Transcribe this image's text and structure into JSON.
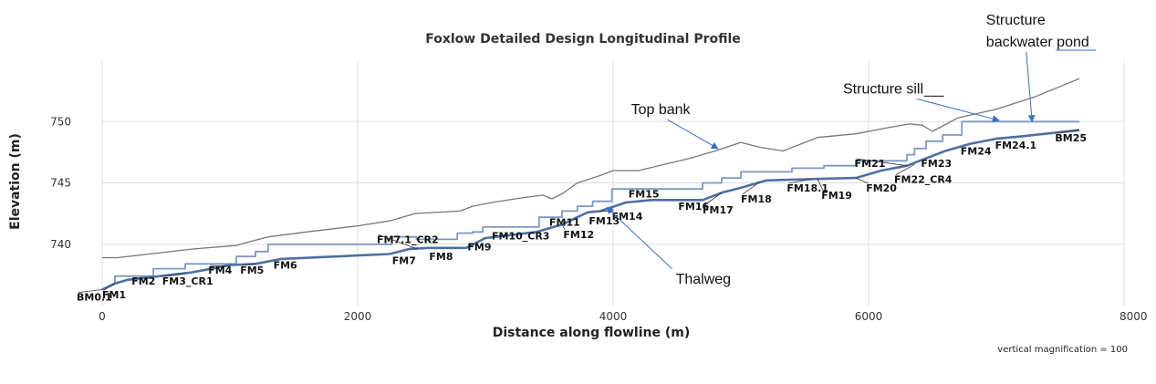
{
  "chart_data": {
    "type": "line",
    "title": "Foxlow Detailed Design Longitudinal Profile",
    "xlabel": "Distance along flowline (m)",
    "ylabel": "Elevation (m)",
    "xlim": [
      0,
      8000
    ],
    "ylim": [
      735,
      755
    ],
    "x_ticks": [
      0,
      2000,
      4000,
      6000,
      8000
    ],
    "x_tick_labels": [
      "0",
      "2000",
      "4000",
      "6000",
      "8000"
    ],
    "y_ticks": [
      740,
      745,
      750
    ],
    "y_tick_labels": [
      "740",
      "745",
      "750"
    ],
    "grid": true,
    "legend": "none",
    "colors": {
      "top_bank": "#777777",
      "thalweg": "#4e6fa3",
      "design": "#7f97c0",
      "grid": "#dddddd",
      "callout_arrow": "#3a6fc4"
    },
    "series": [
      {
        "key": "top_bank",
        "x": [
          0,
          120,
          700,
          1050,
          1150,
          1300,
          1600,
          2000,
          2250,
          2450,
          2800,
          2900,
          3050,
          3300,
          3450,
          3520,
          3600,
          3720,
          3900,
          4000,
          4200,
          4400,
          4600,
          4800,
          5000,
          5150,
          5330,
          5600,
          5900,
          6150,
          6320,
          6420,
          6500,
          6700,
          7000,
          7300,
          7650
        ],
        "y": [
          738.9,
          738.9,
          739.6,
          739.9,
          740.2,
          740.6,
          741.0,
          741.5,
          741.9,
          742.5,
          742.7,
          743.1,
          743.4,
          743.8,
          744.0,
          743.7,
          744.1,
          745.0,
          745.6,
          746.0,
          746.0,
          746.5,
          747.0,
          747.6,
          748.3,
          747.9,
          747.6,
          748.7,
          749.0,
          749.5,
          749.8,
          749.7,
          749.2,
          750.3,
          751.0,
          752.0,
          753.5
        ]
      },
      {
        "key": "thalweg",
        "x": [
          0,
          100,
          200,
          700,
          1000,
          1200,
          1400,
          2250,
          2400,
          2550,
          2850,
          3000,
          3400,
          3600,
          3800,
          3900,
          4100,
          4300,
          4700,
          4850,
          5000,
          5200,
          5500,
          5900,
          6100,
          6300,
          6600,
          6800,
          7000,
          7200,
          7650
        ],
        "y": [
          736.3,
          736.8,
          737.1,
          737.7,
          738.3,
          738.4,
          738.8,
          739.2,
          739.6,
          739.7,
          739.7,
          740.5,
          741.0,
          741.6,
          742.6,
          742.7,
          743.4,
          743.6,
          743.6,
          744.2,
          744.6,
          745.2,
          745.3,
          745.4,
          746.0,
          746.4,
          747.6,
          748.2,
          748.6,
          748.8,
          749.3
        ]
      },
      {
        "key": "design",
        "x": [
          0,
          100,
          100,
          400,
          400,
          650,
          650,
          1050,
          1050,
          1200,
          1200,
          1300,
          1300,
          2270,
          2270,
          2460,
          2460,
          2780,
          2780,
          2900,
          2900,
          2980,
          2980,
          3420,
          3420,
          3600,
          3600,
          3720,
          3720,
          3840,
          3840,
          3990,
          3990,
          4450,
          4450,
          4700,
          4700,
          4850,
          4850,
          5000,
          5000,
          5400,
          5400,
          5650,
          5650,
          5900,
          5900,
          6300,
          6300,
          6360,
          6360,
          6450,
          6450,
          6580,
          6580,
          6730,
          6730,
          7000,
          7000,
          7650
        ],
        "y": [
          736.3,
          736.8,
          737.4,
          737.4,
          738.0,
          738.0,
          738.4,
          738.4,
          739.0,
          739.0,
          739.4,
          739.4,
          740.0,
          740.0,
          740.6,
          740.6,
          740.4,
          740.4,
          740.9,
          740.9,
          741.0,
          741.0,
          741.4,
          741.4,
          742.2,
          742.2,
          742.7,
          742.7,
          743.1,
          743.1,
          743.5,
          743.5,
          744.5,
          744.5,
          744.5,
          744.5,
          745.0,
          745.0,
          745.4,
          745.4,
          745.9,
          745.9,
          746.2,
          746.2,
          746.4,
          746.4,
          746.8,
          746.8,
          747.3,
          747.3,
          747.8,
          747.8,
          748.4,
          748.4,
          748.9,
          748.9,
          750.0,
          750.0,
          750.0,
          750.0
        ]
      }
    ],
    "stations": [
      {
        "label": "BM0.1",
        "x": 0,
        "y": 736.3,
        "tx": -200,
        "ty": 735.4
      },
      {
        "label": "FM1",
        "x": 100,
        "y": 736.8,
        "tx": 0,
        "ty": 735.6
      },
      {
        "label": "FM2",
        "x": 200,
        "y": 737.1,
        "tx": 230,
        "ty": 736.7
      },
      {
        "label": "FM3_CR1",
        "x": 650,
        "y": 737.6,
        "tx": 470,
        "ty": 736.7
      },
      {
        "label": "FM4",
        "x": 1000,
        "y": 738.2,
        "tx": 830,
        "ty": 737.6
      },
      {
        "label": "FM5",
        "x": 1200,
        "y": 738.4,
        "tx": 1080,
        "ty": 737.6
      },
      {
        "label": "FM6",
        "x": 1400,
        "y": 738.8,
        "tx": 1340,
        "ty": 738.0
      },
      {
        "label": "FM7.1_CR2",
        "x": 2470,
        "y": 739.6,
        "tx": 2150,
        "ty": 740.1
      },
      {
        "label": "FM7",
        "x": 2250,
        "y": 739.2,
        "tx": 2270,
        "ty": 738.4
      },
      {
        "label": "FM8",
        "x": 2550,
        "y": 739.7,
        "tx": 2560,
        "ty": 738.7
      },
      {
        "label": "FM9",
        "x": 2870,
        "y": 739.8,
        "tx": 2860,
        "ty": 739.5
      },
      {
        "label": "FM10_CR3",
        "x": 3000,
        "y": 740.5,
        "tx": 3050,
        "ty": 740.4
      },
      {
        "label": "FM11",
        "x": 3450,
        "y": 741.1,
        "tx": 3500,
        "ty": 741.5
      },
      {
        "label": "FM12",
        "x": 3600,
        "y": 741.6,
        "tx": 3610,
        "ty": 740.5
      },
      {
        "label": "FM13",
        "x": 3750,
        "y": 742.3,
        "tx": 3810,
        "ty": 741.6
      },
      {
        "label": "FM14",
        "x": 3900,
        "y": 742.7,
        "tx": 3990,
        "ty": 742.0
      },
      {
        "label": "FM15",
        "x": 4100,
        "y": 743.4,
        "tx": 4120,
        "ty": 743.8
      },
      {
        "label": "FM16",
        "x": 4500,
        "y": 743.6,
        "tx": 4510,
        "ty": 742.8
      },
      {
        "label": "FM17",
        "x": 4850,
        "y": 744.2,
        "tx": 4700,
        "ty": 742.5
      },
      {
        "label": "FM18",
        "x": 5150,
        "y": 745.1,
        "tx": 5000,
        "ty": 743.4
      },
      {
        "label": "FM18.1",
        "x": 5550,
        "y": 745.3,
        "tx": 5360,
        "ty": 744.3
      },
      {
        "label": "FM19",
        "x": 5600,
        "y": 745.3,
        "tx": 5630,
        "ty": 743.7
      },
      {
        "label": "FM20",
        "x": 5900,
        "y": 745.4,
        "tx": 5980,
        "ty": 744.3
      },
      {
        "label": "FM21",
        "x": 6300,
        "y": 746.4,
        "tx": 5890,
        "ty": 746.3
      },
      {
        "label": "FM22_CR4",
        "x": 6360,
        "y": 746.5,
        "tx": 6200,
        "ty": 745.0
      },
      {
        "label": "FM23",
        "x": 6450,
        "y": 747.0,
        "tx": 6410,
        "ty": 746.3
      },
      {
        "label": "FM24",
        "x": 6700,
        "y": 747.9,
        "tx": 6720,
        "ty": 747.3
      },
      {
        "label": "FM24.1",
        "x": 7000,
        "y": 748.6,
        "tx": 6990,
        "ty": 747.8
      },
      {
        "label": "BM25",
        "x": 7650,
        "y": 749.3,
        "tx": 7460,
        "ty": 748.4
      }
    ],
    "annotations": [
      {
        "text": "Top bank",
        "tx": 4140,
        "ty": 750.6,
        "ax": 4820,
        "ay": 747.8
      },
      {
        "text": "Thalweg",
        "tx": 4490,
        "ty": 736.8,
        "ax": 3950,
        "ay": 743.0
      },
      {
        "text": "Structure sill",
        "text_parts": [
          "Structure ",
          "sill"
        ],
        "tx": 5800,
        "ty": 752.3,
        "ax": 7020,
        "ay": 750.1
      },
      {
        "text": "Structure backwater pond",
        "lines": [
          "Structure",
          "backwater pond"
        ],
        "tx": 6920,
        "ty": 757.9,
        "ax": 7280,
        "ay": 750.0
      }
    ],
    "footnote": "vertical magnification = 100"
  }
}
